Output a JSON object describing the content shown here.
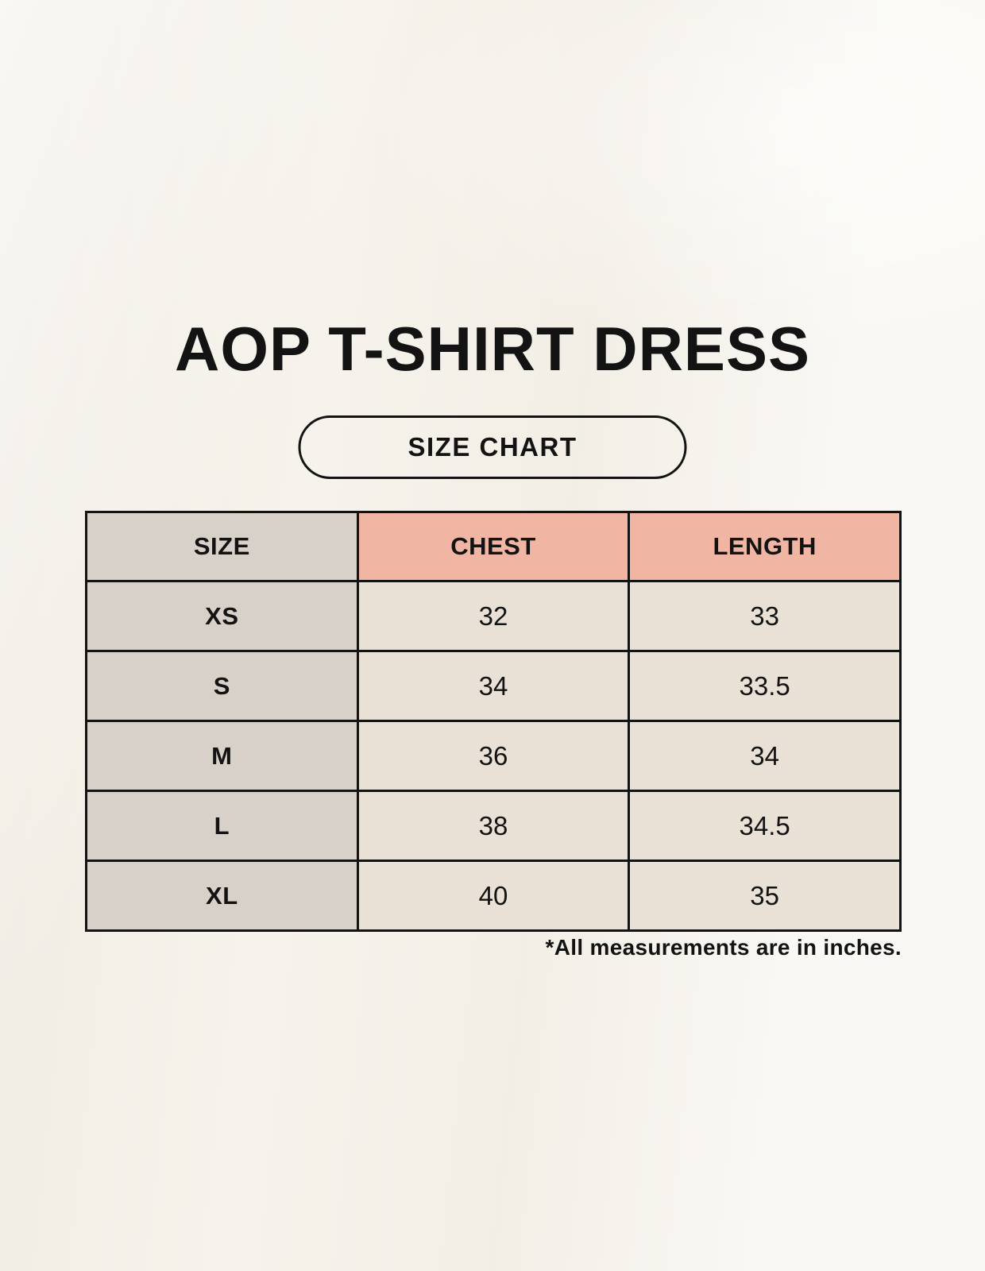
{
  "page": {
    "title": "AOP T-SHIRT DRESS",
    "badge_label": "SIZE CHART",
    "note": "*All measurements are in inches.",
    "units": "inches"
  },
  "colors": {
    "page_background": "#f7f4ee",
    "size_column_bg": "#d8d1ca",
    "header_accent_bg": "#f1b5a3",
    "data_cell_bg": "#e9e1d5",
    "border": "#131313",
    "text": "#131313"
  },
  "table": {
    "headers": [
      "SIZE",
      "CHEST",
      "LENGTH"
    ],
    "rows": [
      {
        "size": "XS",
        "chest": "32",
        "length": "33"
      },
      {
        "size": "S",
        "chest": "34",
        "length": "33.5"
      },
      {
        "size": "M",
        "chest": "36",
        "length": "34"
      },
      {
        "size": "L",
        "chest": "38",
        "length": "34.5"
      },
      {
        "size": "XL",
        "chest": "40",
        "length": "35"
      }
    ]
  }
}
